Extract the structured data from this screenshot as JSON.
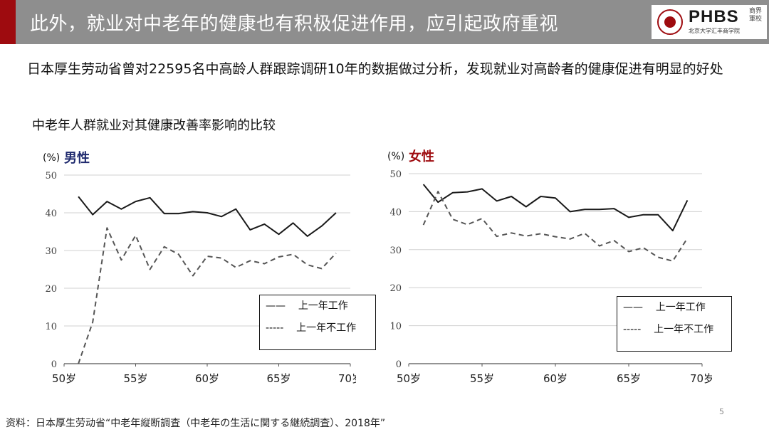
{
  "slide": {
    "title": "此外，就业对中老年的健康也有积极促进作用，应引起政府重视",
    "logo_text": "PHBS",
    "logo_subtitle": "北京大学汇丰商学院",
    "logo_calligraphy": "商界軍校",
    "intro": "日本厚生劳动省曾对22595名中高龄人群跟踪调研10年的数据做过分析，发现就业对高龄者的健康促进有明显的好处",
    "sub_heading": "中老年人群就业对其健康改善率影响的比较",
    "page_number": "5",
    "source": "资料：日本厚生劳动省“中老年縦断調査（中老年の生活に関する継続調査）、2018年”",
    "colors": {
      "accent": "#9e0b0f",
      "title_bar": "#8e8e8e",
      "male_label": "#1f2a6e",
      "female_label": "#9e0b0f"
    }
  },
  "chart_data": [
    {
      "type": "line",
      "unit_label": "(%)",
      "panel_label": "男性",
      "x": [
        51,
        52,
        53,
        54,
        55,
        56,
        57,
        58,
        59,
        60,
        61,
        62,
        63,
        64,
        65,
        66,
        67,
        68,
        69
      ],
      "x_tick_labels": [
        "50岁",
        "55岁",
        "60岁",
        "65岁",
        "70岁"
      ],
      "x_ticks": [
        50,
        55,
        60,
        65,
        70
      ],
      "xlim": [
        50,
        70
      ],
      "ylim": [
        0,
        50
      ],
      "y_ticks": [
        0,
        10,
        20,
        30,
        40,
        50
      ],
      "grid": true,
      "legend_position": "bottom-right",
      "series": [
        {
          "name": "上一年工作",
          "style": "solid",
          "legend_mark": "——",
          "values": [
            null,
            39.5,
            43,
            41,
            43,
            44,
            39.8,
            39.8,
            40.3,
            40,
            39,
            41,
            35.5,
            37,
            34.3,
            37.3,
            33.8,
            36.5,
            40
          ]
        },
        {
          "name": "上一年不工作",
          "style": "dashed",
          "legend_mark": "-----",
          "values": [
            0,
            11,
            36,
            27.5,
            34,
            25,
            31,
            29,
            23.3,
            28.5,
            28,
            25.5,
            27.3,
            26.5,
            28.3,
            29,
            26.2,
            25.2,
            29.3
          ]
        }
      ],
      "first_point": {
        "solid": 44.3
      }
    },
    {
      "type": "line",
      "unit_label": "(%)",
      "panel_label": "女性",
      "x": [
        51,
        52,
        53,
        54,
        55,
        56,
        57,
        58,
        59,
        60,
        61,
        62,
        63,
        64,
        65,
        66,
        67,
        68,
        69
      ],
      "x_tick_labels": [
        "50岁",
        "55岁",
        "60岁",
        "65岁",
        "70岁"
      ],
      "x_ticks": [
        50,
        55,
        60,
        65,
        70
      ],
      "xlim": [
        50,
        70
      ],
      "ylim": [
        0,
        50
      ],
      "y_ticks": [
        0,
        10,
        20,
        30,
        40,
        50
      ],
      "grid": true,
      "legend_position": "bottom-right",
      "series": [
        {
          "name": "上一年工作",
          "style": "solid",
          "legend_mark": "——",
          "values": [
            47.2,
            42.5,
            45,
            45.2,
            46,
            42.8,
            44,
            41.3,
            44,
            43.6,
            40,
            40.6,
            40.6,
            40.8,
            38.5,
            39.2,
            39.2,
            35,
            43
          ]
        },
        {
          "name": "上一年不工作",
          "style": "dashed",
          "legend_mark": "-----",
          "values": [
            36.5,
            45.3,
            38,
            36.6,
            38.2,
            33.5,
            34.4,
            33.6,
            34.2,
            33.4,
            32.8,
            34.3,
            31,
            32.4,
            29.5,
            30.5,
            28,
            27,
            33
          ]
        }
      ]
    }
  ]
}
